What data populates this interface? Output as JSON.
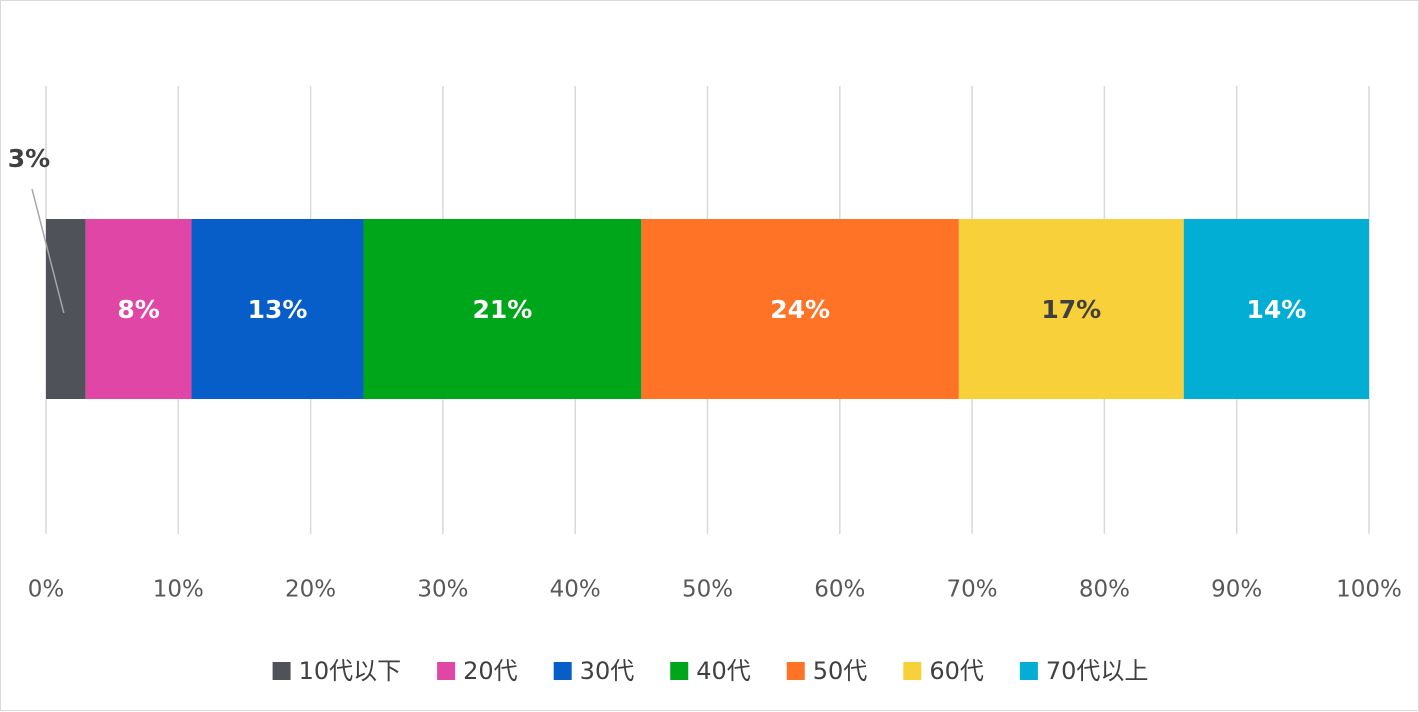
{
  "chart_data": {
    "type": "bar",
    "orientation": "horizontal",
    "stacked": "100%",
    "categories": [
      ""
    ],
    "series": [
      {
        "name": "10代以下",
        "values": [
          3
        ],
        "label": "3%",
        "color": "#505259",
        "label_color": "#404040"
      },
      {
        "name": "20代",
        "values": [
          8
        ],
        "label": "8%",
        "color": "#e046a6",
        "label_color": "#ffffff"
      },
      {
        "name": "30代",
        "values": [
          13
        ],
        "label": "13%",
        "color": "#075ec8",
        "label_color": "#ffffff"
      },
      {
        "name": "40代",
        "values": [
          21
        ],
        "label": "21%",
        "color": "#00a61a",
        "label_color": "#ffffff"
      },
      {
        "name": "50代",
        "values": [
          24
        ],
        "label": "24%",
        "color": "#ff7327",
        "label_color": "#ffffff"
      },
      {
        "name": "60代",
        "values": [
          17
        ],
        "label": "17%",
        "color": "#f8d03a",
        "label_color": "#404040"
      },
      {
        "name": "70代以上",
        "values": [
          14
        ],
        "label": "14%",
        "color": "#02aed3",
        "label_color": "#ffffff"
      }
    ],
    "x_ticks": [
      "0%",
      "10%",
      "20%",
      "30%",
      "40%",
      "50%",
      "60%",
      "70%",
      "80%",
      "90%",
      "100%"
    ],
    "xlim": [
      0,
      100
    ],
    "title": "",
    "xlabel": "",
    "ylabel": "",
    "grid": "vertical",
    "legend_position": "bottom"
  }
}
